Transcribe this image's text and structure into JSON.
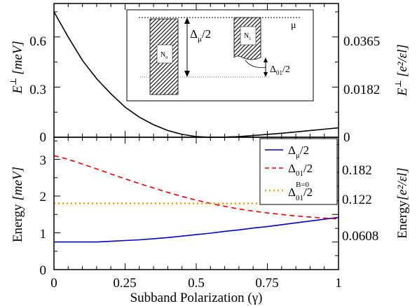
{
  "chart_data": [
    {
      "type": "line",
      "panel": "top",
      "ylabel_left": "E",
      "ylabel_left_sup": "⊥",
      "ylabel_left_unit": "[meV]",
      "ylabel_right": "E",
      "ylabel_right_sup": "⊥",
      "ylabel_right_unit": "[e²/εl]",
      "xlim": [
        0,
        1
      ],
      "ylim": [
        0,
        0.8
      ],
      "yticks_left": [
        "0",
        "0.3",
        "0.6"
      ],
      "yticks_right": [
        "0",
        "0.0182",
        "0.0365"
      ],
      "series": [
        {
          "color": "#000000",
          "x": [
            0,
            0.05,
            0.1,
            0.15,
            0.2,
            0.25,
            0.3,
            0.35,
            0.4,
            0.45,
            0.5,
            0.55,
            0.6,
            0.65,
            0.7,
            0.75,
            0.8,
            0.85,
            0.9,
            0.95,
            1.0
          ],
          "y": [
            0.75,
            0.6,
            0.46,
            0.35,
            0.26,
            0.18,
            0.12,
            0.075,
            0.04,
            0.017,
            0.004,
            0.0,
            0.001,
            0.004,
            0.01,
            0.017,
            0.024,
            0.032,
            0.04,
            0.048,
            0.056
          ]
        }
      ],
      "inset": {
        "mu_label": "μ",
        "n0_label": "N",
        "n0_sub": "0",
        "n1_label": "N",
        "n1_sub": "1",
        "delta_mu_label": "Δ",
        "delta_mu_sub": "μ",
        "delta_mu_tail": "/2",
        "delta_01_label": "Δ",
        "delta_01_sub": "01",
        "delta_01_tail": "/2"
      }
    },
    {
      "type": "line",
      "panel": "bottom",
      "xlabel": "Subband Polarization (γ)",
      "ylabel_left": "Energy",
      "ylabel_left_unit": "[meV]",
      "ylabel_right": "Energy",
      "ylabel_right_unit": "[e²/εl]",
      "xlim": [
        0,
        1
      ],
      "ylim": [
        0,
        3.6
      ],
      "xticks": [
        "0",
        "0.25",
        "0.5",
        "0.75",
        "1"
      ],
      "yticks_left": [
        "0",
        "1",
        "2",
        "3"
      ],
      "yticks_right": [
        "0.0608",
        "0.122",
        "0.182"
      ],
      "legend_position": "top-right",
      "series": [
        {
          "legend": {
            "main": "Δ",
            "sub": "μ",
            "sup": "",
            "tail": "/2"
          },
          "color": "#0000cc",
          "style": "solid",
          "x": [
            0,
            0.05,
            0.1,
            0.15,
            0.2,
            0.25,
            0.3,
            0.35,
            0.4,
            0.45,
            0.5,
            0.55,
            0.6,
            0.65,
            0.7,
            0.75,
            0.8,
            0.85,
            0.9,
            0.95,
            1.0
          ],
          "y": [
            0.75,
            0.75,
            0.75,
            0.75,
            0.77,
            0.79,
            0.81,
            0.84,
            0.87,
            0.91,
            0.95,
            0.99,
            1.04,
            1.08,
            1.13,
            1.17,
            1.22,
            1.27,
            1.32,
            1.37,
            1.42
          ]
        },
        {
          "legend": {
            "main": "Δ",
            "sub": "01",
            "sup": "",
            "tail": "/2"
          },
          "color": "#ee0000",
          "style": "dashed",
          "x": [
            0,
            0.05,
            0.1,
            0.15,
            0.2,
            0.25,
            0.3,
            0.35,
            0.4,
            0.45,
            0.5,
            0.55,
            0.6,
            0.65,
            0.7,
            0.75,
            0.8,
            0.85,
            0.9,
            0.95,
            1.0
          ],
          "y": [
            3.1,
            3.0,
            2.87,
            2.74,
            2.6,
            2.47,
            2.34,
            2.22,
            2.1,
            1.99,
            1.89,
            1.8,
            1.72,
            1.65,
            1.59,
            1.54,
            1.5,
            1.46,
            1.43,
            1.4,
            1.38
          ]
        },
        {
          "legend": {
            "main": "Δ",
            "sub": "01",
            "sup": "B=0",
            "tail": "/2"
          },
          "color": "#ff9900",
          "style": "dotted",
          "x": [
            0,
            1
          ],
          "y": [
            1.8,
            1.8
          ]
        }
      ]
    }
  ]
}
